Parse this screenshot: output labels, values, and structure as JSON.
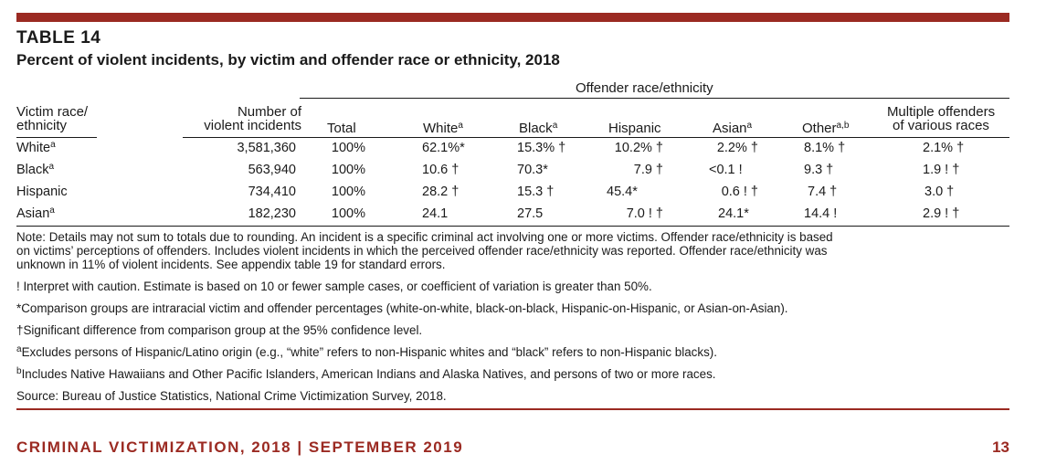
{
  "table_label": "TABLE 14",
  "title": "Percent of violent incidents, by victim and offender race or ethnicity, 2018",
  "headers": {
    "group": "Offender race/ethnicity",
    "victim_line1": "Victim race/",
    "victim_line2": "ethnicity",
    "number_line1": "Number of",
    "number_line2": "violent incidents",
    "total": "Total",
    "white": "White",
    "black": "Black",
    "hispanic": "Hispanic",
    "asian": "Asian",
    "other": "Other",
    "multiple_line1": "Multiple offenders",
    "multiple_line2": "of various races",
    "sup_a": "a",
    "sup_ab": "a,b"
  },
  "rows": [
    {
      "victim": "White",
      "victim_sup": "a",
      "number": "3,581,360",
      "total": "100%",
      "white": "62.1%*",
      "black": "15.3% †",
      "hispanic": "10.2% †",
      "asian": "2.2% †",
      "other": "8.1% †",
      "multiple": "2.1% †"
    },
    {
      "victim": "Black",
      "victim_sup": "a",
      "number": "563,940",
      "total": "100%",
      "white": "10.6 †",
      "black": "70.3*",
      "hispanic": "7.9 †",
      "asian": "<0.1 !",
      "other": "9.3 †",
      "multiple": "1.9 ! †"
    },
    {
      "victim": "Hispanic",
      "victim_sup": "",
      "number": "734,410",
      "total": "100%",
      "white": "28.2 †",
      "black": "15.3 †",
      "hispanic": "45.4*",
      "asian": "0.6 ! †",
      "other": "7.4 †",
      "multiple": "3.0 †"
    },
    {
      "victim": "Asian",
      "victim_sup": "a",
      "number": "182,230",
      "total": "100%",
      "white": "24.1",
      "black": "27.5",
      "hispanic": "7.0 ! †",
      "asian": "24.1*",
      "other": "14.4 !",
      "multiple": "2.9 ! †"
    }
  ],
  "notes": {
    "n1": "Note: Details may not sum to totals due to rounding. An incident is a specific criminal act involving one or more victims. Offender race/ethnicity is based",
    "n2": "on victims’ perceptions of offenders. Includes violent incidents in which the perceived offender race/ethnicity was reported. Offender race/ethnicity was",
    "n3": "unknown in 11% of violent incidents. See appendix table 19 for standard errors.",
    "n4": "! Interpret with caution. Estimate is based on 10 or fewer sample cases, or coefficient of variation is greater than 50%.",
    "n5": "*Comparison groups are intraracial victim and offender percentages (white-on-white, black-on-black, Hispanic-on-Hispanic, or Asian-on-Asian).",
    "n6": "†Significant difference from comparison group at the 95% confidence level.",
    "n7_sup": "a",
    "n7": "Excludes persons of Hispanic/Latino origin (e.g., “white” refers to non-Hispanic whites and “black” refers to non-Hispanic blacks).",
    "n8_sup": "b",
    "n8": "Includes Native Hawaiians and Other Pacific Islanders, American Indians and Alaska Natives, and persons of two or more races.",
    "source": "Source: Bureau of Justice Statistics, National Crime Victimization Survey, 2018."
  },
  "footer": {
    "text": "CRIMINAL VICTIMIZATION, 2018 | SEPTEMBER 2019",
    "page": "13"
  },
  "colors": {
    "accent": "#9b2a22",
    "text": "#1a1a1a"
  }
}
